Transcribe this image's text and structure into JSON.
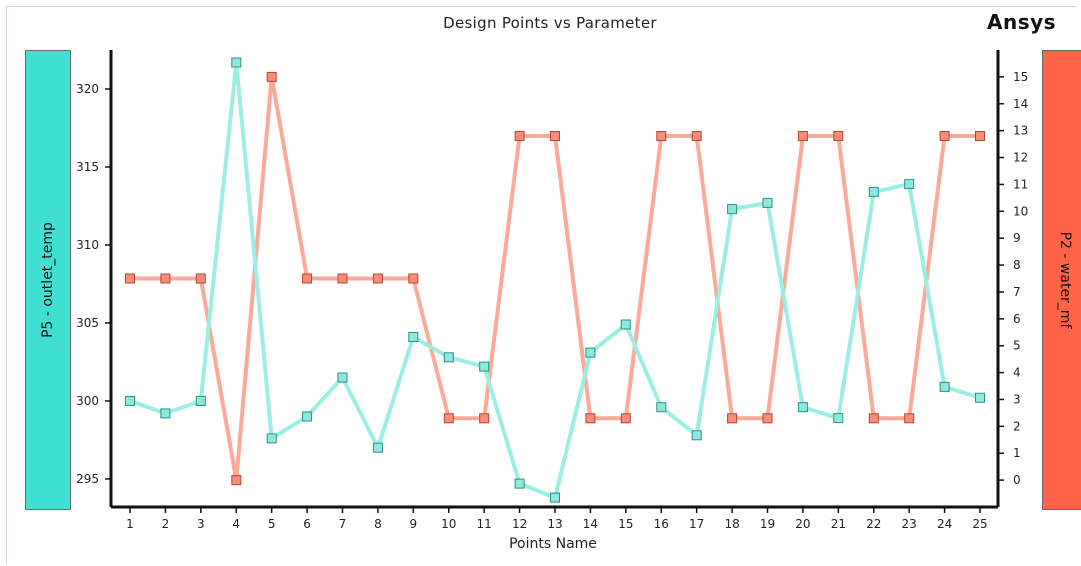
{
  "chart_data": {
    "type": "line",
    "title": "Design Points vs Parameter",
    "xlabel": "Points Name",
    "categories": [
      "1",
      "2",
      "3",
      "4",
      "5",
      "6",
      "7",
      "8",
      "9",
      "10",
      "11",
      "12",
      "13",
      "14",
      "15",
      "16",
      "17",
      "18",
      "19",
      "20",
      "21",
      "22",
      "23",
      "24",
      "25"
    ],
    "y_left": {
      "label": "P5 - outlet_temp",
      "lim": [
        293.2,
        322.5
      ],
      "ticks": [
        295,
        300,
        305,
        310,
        315,
        320
      ]
    },
    "y_right": {
      "label": "P2 - water_mf",
      "lim": [
        -1.0,
        16.0
      ],
      "ticks": [
        0,
        1,
        2,
        3,
        4,
        5,
        6,
        7,
        8,
        9,
        10,
        11,
        12,
        13,
        14,
        15
      ]
    },
    "series": [
      {
        "name": "P5 - outlet_temp",
        "axis": "left",
        "color": "#40e0d0",
        "values": [
          300.0,
          299.2,
          300.0,
          321.7,
          297.6,
          299.0,
          301.5,
          297.0,
          304.1,
          302.8,
          302.2,
          294.7,
          293.8,
          303.1,
          304.9,
          299.6,
          297.8,
          312.3,
          312.7,
          299.6,
          298.9,
          313.4,
          313.9,
          300.9,
          300.2
        ]
      },
      {
        "name": "P2 - water_mf",
        "axis": "right",
        "color": "#ff6347",
        "values": [
          7.5,
          7.5,
          7.5,
          0.0,
          15.0,
          7.5,
          7.5,
          7.5,
          7.5,
          2.3,
          2.3,
          12.8,
          12.8,
          2.3,
          2.3,
          12.8,
          12.8,
          2.3,
          2.3,
          12.8,
          12.8,
          2.3,
          2.3,
          12.8,
          12.8
        ]
      }
    ],
    "grid": false
  },
  "brand": {
    "logo_text": "Ansys"
  }
}
